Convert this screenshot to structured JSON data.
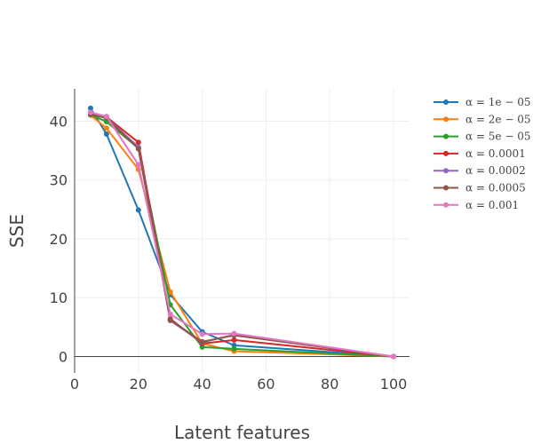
{
  "chart_data": {
    "type": "line",
    "title": "",
    "xlabel": "Latent features",
    "ylabel": "SSE",
    "xlim": [
      0,
      105
    ],
    "ylim": [
      -2.8,
      45.5
    ],
    "x_ticks": [
      0,
      20,
      40,
      60,
      80,
      100
    ],
    "y_ticks": [
      0,
      10,
      20,
      30,
      40
    ],
    "grid": true,
    "legend_position": "right",
    "x": [
      5,
      10,
      20,
      30,
      40,
      50,
      100
    ],
    "series": [
      {
        "name": "α = 1e − 05",
        "color": "#1f77b4",
        "values": [
          42.2,
          37.8,
          24.9,
          10.5,
          4.2,
          1.9,
          0.0
        ]
      },
      {
        "name": "α = 2e − 05",
        "color": "#ff7f0e",
        "values": [
          41.0,
          38.8,
          31.8,
          11.0,
          2.2,
          0.9,
          0.0
        ]
      },
      {
        "name": "α = 5e − 05",
        "color": "#2ca02c",
        "values": [
          41.1,
          39.9,
          35.4,
          8.8,
          1.6,
          1.3,
          0.0
        ]
      },
      {
        "name": "α = 0.0001",
        "color": "#d62728",
        "values": [
          41.2,
          40.7,
          36.4,
          6.4,
          2.2,
          2.8,
          0.0
        ]
      },
      {
        "name": "α = 0.0002",
        "color": "#9467bd",
        "values": [
          41.3,
          40.6,
          35.6,
          6.1,
          2.4,
          3.7,
          0.0
        ]
      },
      {
        "name": "α = 0.0005",
        "color": "#8c564b",
        "values": [
          41.2,
          40.5,
          35.3,
          6.2,
          2.5,
          3.6,
          0.0
        ]
      },
      {
        "name": "α = 0.001",
        "color": "#e377c2",
        "values": [
          41.5,
          40.8,
          32.6,
          7.2,
          3.8,
          3.9,
          0.0
        ]
      }
    ]
  }
}
